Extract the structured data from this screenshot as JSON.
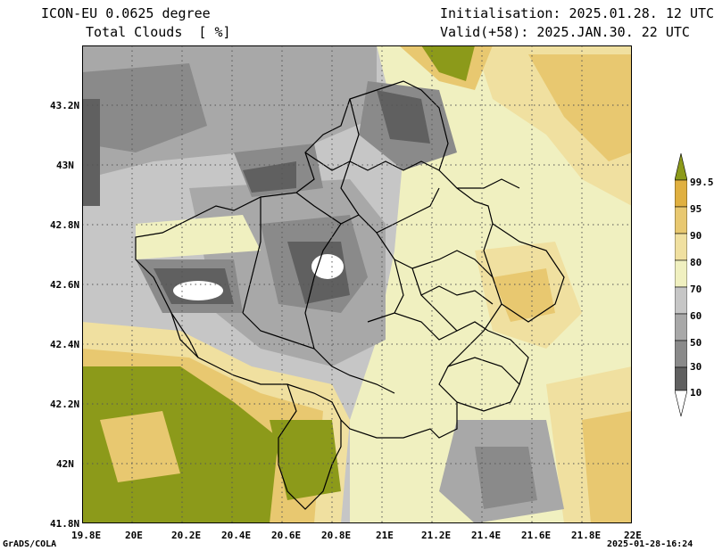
{
  "header": {
    "model": "ICON-EU 0.0625 degree",
    "variable": "Total Clouds  [ %]",
    "init": "Initialisation: 2025.01.28. 12 UTC",
    "valid": "Valid(+58): 2025.JAN.30. 22 UTC"
  },
  "map": {
    "lon_range": [
      19.8,
      22.0
    ],
    "lat_range": [
      41.8,
      43.4
    ],
    "lat_ticks": [
      "43.2N",
      "43N",
      "42.8N",
      "42.6N",
      "42.4N",
      "42.2N",
      "42N",
      "41.8N"
    ],
    "lon_ticks": [
      "19.8E",
      "20E",
      "20.2E",
      "20.4E",
      "20.6E",
      "20.8E",
      "21E",
      "21.2E",
      "21.4E",
      "21.6E",
      "21.8E",
      "22E"
    ],
    "gridlines": "dotted"
  },
  "colorbar": {
    "levels": [
      "10",
      "30",
      "50",
      "60",
      "70",
      "80",
      "90",
      "95",
      "99.5"
    ],
    "colors": [
      "#ffffff",
      "#606060",
      "#8a8a8a",
      "#a8a8a8",
      "#c6c6c6",
      "#f0f0c0",
      "#f0e0a0",
      "#e8c870",
      "#e0b040",
      "#8c9a1a"
    ]
  },
  "footer": {
    "left": "GrADS/COLA",
    "right": "2025-01-28-16:24"
  }
}
